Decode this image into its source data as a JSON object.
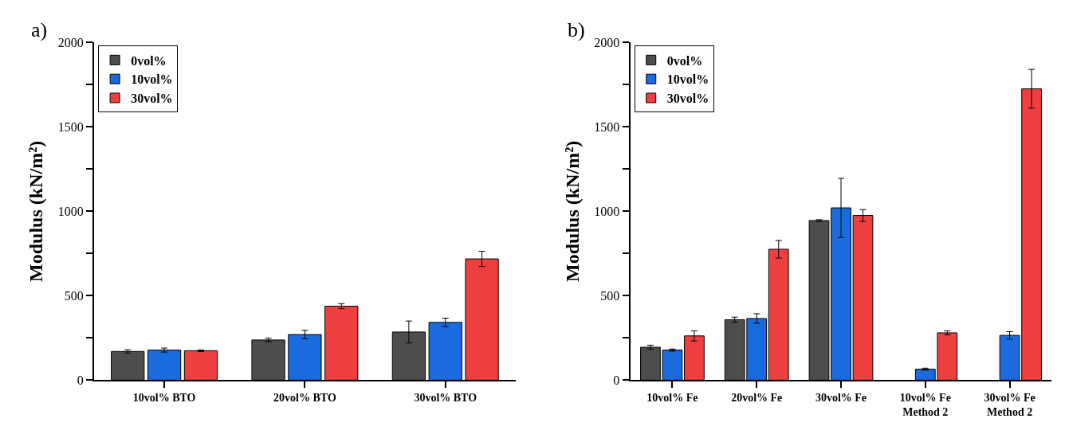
{
  "chart_data": [
    {
      "type": "bar",
      "ylabel": "Modulus (kN/m²)",
      "annotations": [
        "a)"
      ],
      "legend": "top left",
      "categories": [
        "10vol% BTO",
        "20vol% BTO",
        "30vol% BTO"
      ],
      "ylim": [
        0,
        2000
      ],
      "yticks": [
        0,
        {
          "value": 250,
          "label": null
        },
        500,
        {
          "value": 750,
          "label": null
        },
        1000,
        {
          "value": 1250,
          "label": null
        },
        1500,
        {
          "value": 1750,
          "label": null
        },
        2000
      ],
      "series": [
        {
          "name": "0vol%",
          "color": "#4d4d4d",
          "values": [
            170,
            238,
            285
          ],
          "errors": [
            10,
            10,
            65
          ]
        },
        {
          "name": "10vol%",
          "color": "#1a6bde",
          "values": [
            178,
            270,
            342
          ],
          "errors": [
            12,
            25,
            25
          ]
        },
        {
          "name": "30vol%",
          "color": "#ef4040",
          "values": [
            174,
            438,
            718
          ],
          "errors": [
            5,
            15,
            45
          ]
        }
      ]
    },
    {
      "type": "bar",
      "ylabel": "Modulus (kN/m²)",
      "annotations": [
        "b)"
      ],
      "legend": "top left",
      "categories": [
        "10vol% Fe",
        "20vol% Fe",
        "30vol% Fe",
        "10vol% Fe\nMethod 2",
        "30vol% Fe\nMethod 2"
      ],
      "ylim": [
        0,
        2000
      ],
      "yticks": [
        0,
        {
          "value": 250,
          "label": null
        },
        500,
        {
          "value": 750,
          "label": null
        },
        1000,
        {
          "value": 1250,
          "label": null
        },
        1500,
        {
          "value": 1750,
          "label": null
        },
        2000
      ],
      "series": [
        {
          "name": "0vol%",
          "color": "#4d4d4d",
          "values": [
            195,
            358,
            945,
            null,
            null
          ],
          "errors": [
            12,
            15,
            5,
            null,
            null
          ]
        },
        {
          "name": "10vol%",
          "color": "#1a6bde",
          "values": [
            178,
            365,
            1020,
            65,
            265
          ],
          "errors": [
            6,
            28,
            175,
            6,
            22
          ]
        },
        {
          "name": "30vol%",
          "color": "#ef4040",
          "values": [
            262,
            775,
            975,
            280,
            1725
          ],
          "errors": [
            30,
            52,
            35,
            12,
            115
          ]
        }
      ]
    }
  ]
}
